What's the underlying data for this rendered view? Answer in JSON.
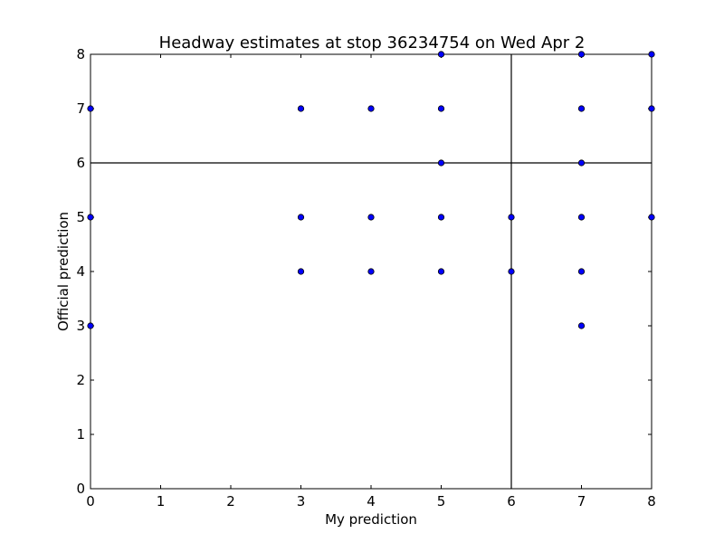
{
  "chart_data": {
    "type": "scatter",
    "title": "Headway estimates at stop 36234754 on Wed Apr 2",
    "xlabel": "My prediction",
    "ylabel": "Official prediction",
    "xlim": [
      0,
      8
    ],
    "ylim": [
      0,
      8
    ],
    "xticks": [
      "0",
      "1",
      "2",
      "3",
      "4",
      "5",
      "6",
      "7",
      "8"
    ],
    "yticks": [
      "0",
      "1",
      "2",
      "3",
      "4",
      "5",
      "6",
      "7",
      "8"
    ],
    "grid": false,
    "reference_lines": {
      "x": 6,
      "y": 6
    },
    "marker_color": "#0000ff",
    "line_color": "#000000",
    "points": [
      {
        "x": 0,
        "y": 7
      },
      {
        "x": 0,
        "y": 5
      },
      {
        "x": 0,
        "y": 3
      },
      {
        "x": 3,
        "y": 7
      },
      {
        "x": 3,
        "y": 5
      },
      {
        "x": 3,
        "y": 4
      },
      {
        "x": 4,
        "y": 7
      },
      {
        "x": 4,
        "y": 5
      },
      {
        "x": 4,
        "y": 4
      },
      {
        "x": 5,
        "y": 8
      },
      {
        "x": 5,
        "y": 7
      },
      {
        "x": 5,
        "y": 6
      },
      {
        "x": 5,
        "y": 5
      },
      {
        "x": 5,
        "y": 4
      },
      {
        "x": 6,
        "y": 5
      },
      {
        "x": 6,
        "y": 4
      },
      {
        "x": 7,
        "y": 8
      },
      {
        "x": 7,
        "y": 7
      },
      {
        "x": 7,
        "y": 6
      },
      {
        "x": 7,
        "y": 5
      },
      {
        "x": 7,
        "y": 4
      },
      {
        "x": 7,
        "y": 3
      },
      {
        "x": 8,
        "y": 8
      },
      {
        "x": 8,
        "y": 7
      },
      {
        "x": 8,
        "y": 5
      }
    ]
  }
}
